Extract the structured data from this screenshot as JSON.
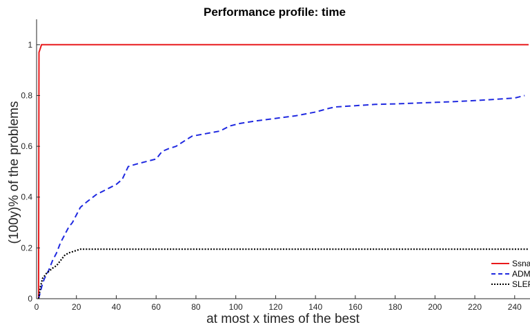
{
  "chart_data": {
    "type": "line",
    "title": "Performance profile: time",
    "xlabel": "at most x times of the best",
    "ylabel": "(100y)% of the problems",
    "xlim": [
      0,
      247
    ],
    "ylim": [
      0,
      1.1
    ],
    "xticks": [
      0,
      20,
      40,
      60,
      80,
      100,
      120,
      140,
      160,
      180,
      200,
      220,
      240
    ],
    "yticks": [
      0,
      0.2,
      0.4,
      0.6,
      0.8,
      1
    ],
    "ytick_labels": [
      "0",
      "0.2",
      "0.4",
      "0.6",
      "0.8",
      "1"
    ],
    "grid": false,
    "legend_position": "bottom-right",
    "series": [
      {
        "name": "Ssnal",
        "color": "#e8191b",
        "style": "solid",
        "x": [
          1,
          1.2,
          2.5,
          247
        ],
        "y": [
          0,
          0.97,
          1,
          1
        ]
      },
      {
        "name": "ADMM",
        "color": "#1f29e0",
        "style": "dashed",
        "x": [
          1,
          2,
          3,
          4,
          6,
          8,
          10,
          12,
          14,
          16,
          18,
          20,
          22,
          25,
          30,
          35,
          40,
          43,
          46,
          50,
          55,
          60,
          63,
          66,
          70,
          74,
          78,
          85,
          92,
          97,
          102,
          110,
          120,
          130,
          140,
          147,
          150,
          160,
          170,
          180,
          190,
          200,
          210,
          220,
          230,
          240,
          245
        ],
        "y": [
          0,
          0.03,
          0.06,
          0.08,
          0.11,
          0.15,
          0.18,
          0.22,
          0.25,
          0.28,
          0.3,
          0.33,
          0.36,
          0.38,
          0.41,
          0.43,
          0.45,
          0.47,
          0.52,
          0.53,
          0.54,
          0.55,
          0.58,
          0.59,
          0.6,
          0.62,
          0.64,
          0.65,
          0.66,
          0.68,
          0.69,
          0.7,
          0.71,
          0.72,
          0.735,
          0.75,
          0.755,
          0.76,
          0.765,
          0.767,
          0.77,
          0.773,
          0.776,
          0.78,
          0.785,
          0.79,
          0.8
        ]
      },
      {
        "name": "SLEP",
        "color": "#000000",
        "style": "dotted",
        "x": [
          1,
          2,
          3,
          5,
          8,
          10,
          12,
          14,
          16,
          18,
          20,
          22,
          25,
          30,
          40,
          60,
          100,
          150,
          200,
          247
        ],
        "y": [
          0,
          0.05,
          0.08,
          0.1,
          0.12,
          0.13,
          0.15,
          0.17,
          0.18,
          0.185,
          0.19,
          0.195,
          0.195,
          0.195,
          0.195,
          0.195,
          0.195,
          0.195,
          0.195,
          0.195
        ]
      }
    ]
  }
}
